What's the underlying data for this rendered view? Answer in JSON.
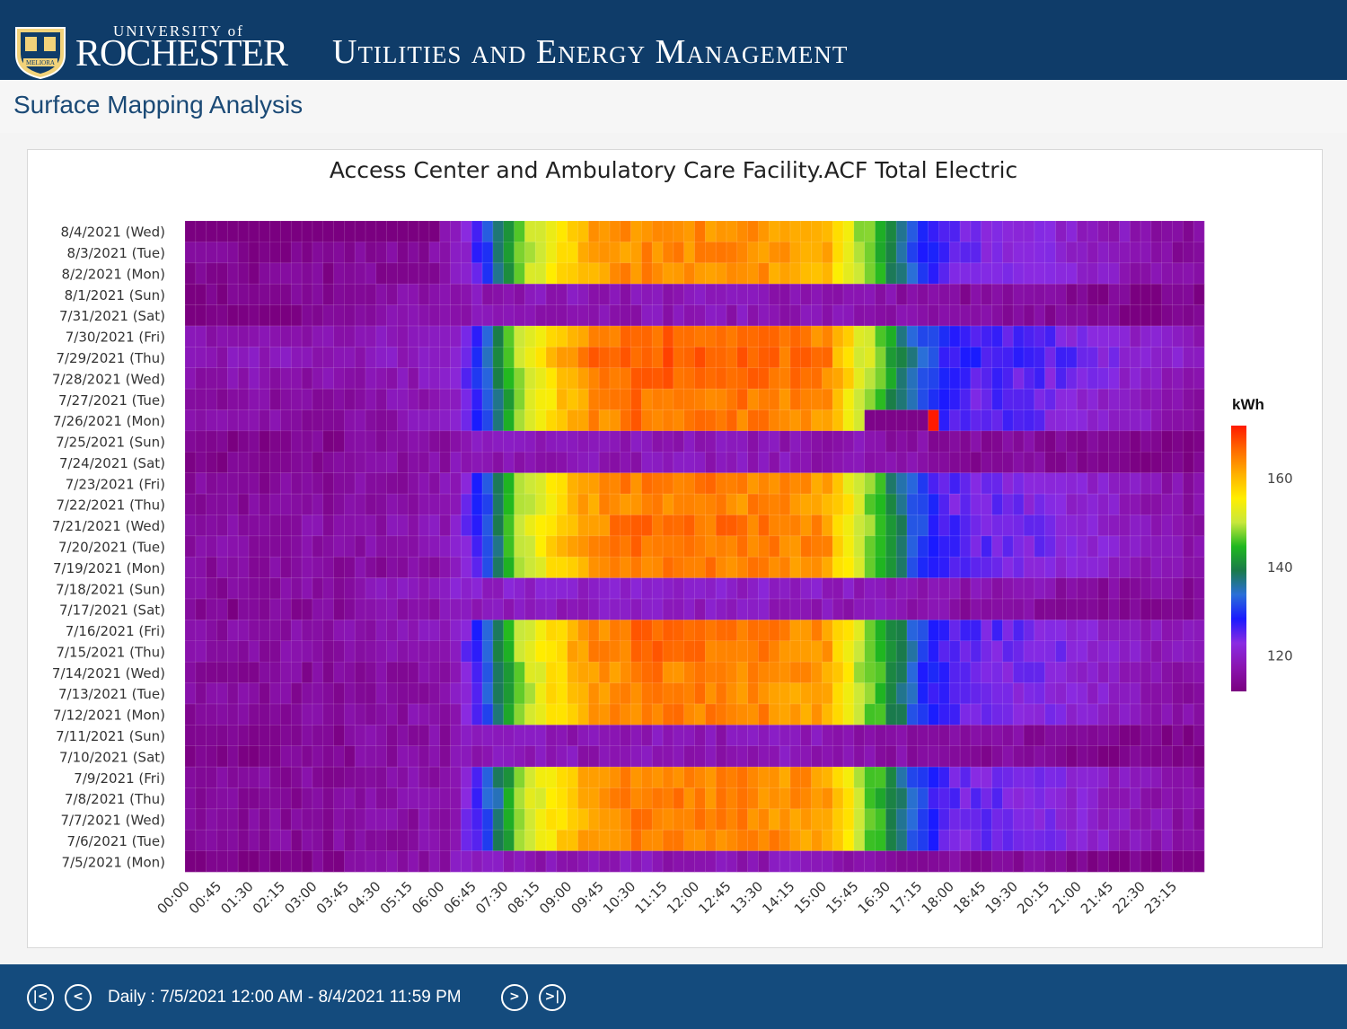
{
  "header": {
    "university_small": "UNIVERSITY of",
    "university_big": "ROCHESTER",
    "seal_text": "MELIORA",
    "department": "Utilities and Energy Management"
  },
  "page": {
    "title": "Surface Mapping Analysis"
  },
  "footer": {
    "date_range": "Daily : 7/5/2021 12:00 AM - 8/4/2021 11:59 PM",
    "first_icon": "first-page-icon",
    "prev_icon": "previous-icon",
    "next_icon": "next-icon",
    "last_icon": "last-page-icon"
  },
  "colors": {
    "header_bg": "#0f3c69",
    "footer_bg": "#144b7d",
    "colorscale": [
      "#7a0080",
      "#8a14b0",
      "#8a2be2",
      "#1a1aff",
      "#2a6fd8",
      "#1a7a4a",
      "#1fb81f",
      "#c8e83c",
      "#ffee00",
      "#ffb000",
      "#ff6a00",
      "#ff1a00"
    ]
  },
  "chart_data": {
    "type": "heatmap",
    "title": "Access Center and Ambulatory Care Facility.ACF Total Electric",
    "colorbar_title": "kWh",
    "colorbar_ticks": [
      120,
      140,
      160
    ],
    "z_range": [
      112,
      172
    ],
    "rows_top_to_bottom": [
      "8/4/2021 (Wed)",
      "8/3/2021 (Tue)",
      "8/2/2021 (Mon)",
      "8/1/2021 (Sun)",
      "7/31/2021 (Sat)",
      "7/30/2021 (Fri)",
      "7/29/2021 (Thu)",
      "7/28/2021 (Wed)",
      "7/27/2021 (Tue)",
      "7/26/2021 (Mon)",
      "7/25/2021 (Sun)",
      "7/24/2021 (Sat)",
      "7/23/2021 (Fri)",
      "7/22/2021 (Thu)",
      "7/21/2021 (Wed)",
      "7/20/2021 (Tue)",
      "7/19/2021 (Mon)",
      "7/18/2021 (Sun)",
      "7/17/2021 (Sat)",
      "7/16/2021 (Fri)",
      "7/15/2021 (Thu)",
      "7/14/2021 (Wed)",
      "7/13/2021 (Tue)",
      "7/12/2021 (Mon)",
      "7/11/2021 (Sun)",
      "7/10/2021 (Sat)",
      "7/9/2021 (Fri)",
      "7/8/2021 (Thu)",
      "7/7/2021 (Wed)",
      "7/6/2021 (Tue)",
      "7/5/2021 (Mon)"
    ],
    "x_tick_labels": [
      "00:00",
      "00:45",
      "01:30",
      "02:15",
      "03:00",
      "03:45",
      "04:30",
      "05:15",
      "06:00",
      "06:45",
      "07:30",
      "08:15",
      "09:00",
      "09:45",
      "10:30",
      "11:15",
      "12:00",
      "12:45",
      "13:30",
      "14:15",
      "15:00",
      "15:45",
      "16:30",
      "17:15",
      "18:00",
      "18:45",
      "19:30",
      "20:15",
      "21:00",
      "21:45",
      "22:30",
      "23:15"
    ],
    "x_interval_minutes": 15,
    "intervals_per_day": 96,
    "profiles": {
      "weekend": [
        [
          0,
          113
        ],
        [
          6,
          113
        ],
        [
          10,
          114
        ],
        [
          14,
          114
        ],
        [
          18,
          116
        ],
        [
          20,
          116
        ],
        [
          24,
          116
        ],
        [
          25,
          118
        ],
        [
          30,
          118
        ],
        [
          40,
          118
        ],
        [
          48,
          118
        ],
        [
          56,
          118
        ],
        [
          64,
          117
        ],
        [
          68,
          116
        ],
        [
          72,
          115
        ],
        [
          76,
          115
        ],
        [
          80,
          115
        ],
        [
          84,
          114
        ],
        [
          90,
          113
        ],
        [
          95,
          113
        ]
      ],
      "weekday": [
        [
          0,
          115
        ],
        [
          12,
          115
        ],
        [
          20,
          116
        ],
        [
          24,
          117
        ],
        [
          25,
          119
        ],
        [
          26,
          123
        ],
        [
          27,
          127
        ],
        [
          28,
          132
        ],
        [
          29,
          137
        ],
        [
          30,
          143
        ],
        [
          31,
          148
        ],
        [
          32,
          151
        ],
        [
          33,
          153
        ],
        [
          34,
          156
        ],
        [
          35,
          158
        ],
        [
          36,
          160
        ],
        [
          38,
          163
        ],
        [
          42,
          165
        ],
        [
          48,
          165
        ],
        [
          54,
          164
        ],
        [
          58,
          163
        ],
        [
          60,
          162
        ],
        [
          61,
          158
        ],
        [
          62,
          155
        ],
        [
          63,
          150
        ],
        [
          65,
          145
        ],
        [
          66,
          140
        ],
        [
          67,
          137
        ],
        [
          68,
          133
        ],
        [
          69,
          130
        ],
        [
          70,
          128
        ],
        [
          71,
          126
        ],
        [
          72,
          125
        ],
        [
          76,
          124
        ],
        [
          80,
          123
        ],
        [
          84,
          121
        ],
        [
          88,
          119
        ],
        [
          92,
          117
        ],
        [
          95,
          116
        ]
      ]
    },
    "row_profiles": [
      "weekday",
      "weekday",
      "weekday",
      "weekend",
      "weekend",
      "weekday",
      "weekday",
      "weekday",
      "weekday",
      "weekday",
      "weekend",
      "weekend",
      "weekday",
      "weekday",
      "weekday",
      "weekday",
      "weekday",
      "weekend",
      "weekend",
      "weekday",
      "weekday",
      "weekday",
      "weekday",
      "weekday",
      "weekend",
      "weekend",
      "weekday",
      "weekday",
      "weekday",
      "weekday",
      "weekend"
    ],
    "row_offsets": [
      -1,
      -1,
      -1,
      0,
      0,
      2,
      3,
      2,
      1,
      1,
      0,
      0,
      0,
      0,
      1,
      1,
      0,
      2,
      1,
      1,
      1,
      0,
      0,
      0,
      0,
      0,
      0,
      0,
      0,
      0,
      0
    ],
    "anomalies": [
      {
        "row": "8/4/2021 (Wed)",
        "from_interval": 0,
        "to_interval": 23,
        "value": 112
      },
      {
        "row": "7/26/2021 (Mon)",
        "from_interval": 64,
        "to_interval": 69,
        "value": 113
      },
      {
        "row": "7/26/2021 (Mon)",
        "from_interval": 70,
        "to_interval": 70,
        "value": 172
      }
    ]
  }
}
